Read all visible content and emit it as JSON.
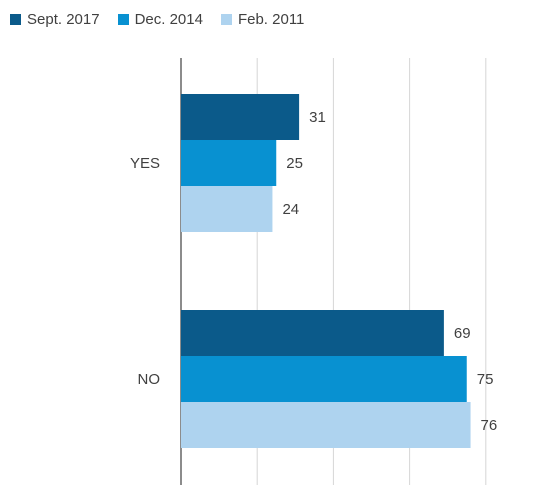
{
  "chart_data": {
    "type": "bar",
    "orientation": "horizontal",
    "title": "",
    "xlabel": "",
    "ylabel": "",
    "categories": [
      "YES",
      "NO"
    ],
    "series": [
      {
        "name": "Sept. 2017",
        "values": [
          31,
          69
        ],
        "color": "#0b5a8a"
      },
      {
        "name": "Dec. 2014",
        "values": [
          25,
          75
        ],
        "color": "#0891d1"
      },
      {
        "name": "Feb. 2011",
        "values": [
          24,
          76
        ],
        "color": "#aed3ef"
      }
    ],
    "xlim": [
      0,
      80
    ],
    "gridlines": [
      0,
      20,
      40,
      60,
      80
    ],
    "grid": true,
    "legend": "top-left",
    "data_labels": true
  }
}
